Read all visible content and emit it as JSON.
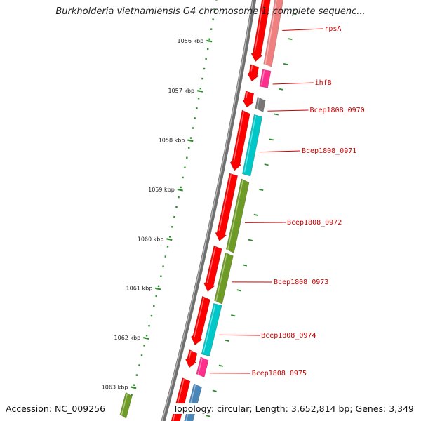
{
  "title": "Burkholderia vietnamiensis G4 chromosome 1, complete sequenc...",
  "accession": "Accession: NC_009256",
  "topology": "Topology: circular; Length: 3,652,814 bp; Genes: 3,349",
  "kbp_labels": [
    "1056 kbp",
    "1057 kbp",
    "1058 kbp",
    "1059 kbp",
    "1060 kbp",
    "1061 kbp",
    "1062 kbp",
    "1063 kbp"
  ],
  "gene_labels": [
    "rpsA",
    "ihfB",
    "Bcep1808_0970",
    "Bcep1808_0971",
    "Bcep1808_0972",
    "Bcep1808_0973",
    "Bcep1808_0974",
    "Bcep1808_0975"
  ],
  "colors": {
    "tick_green": "#2e8b2e",
    "backbone": "#8a8a8a",
    "cds_red": "#ff0000",
    "label_red": "#cc0000",
    "pink": "#ff2d8c",
    "light_red": "#f07f7f",
    "gray": "#777777",
    "cyan": "#00c8c8",
    "olive": "#6e9b25",
    "steelblue": "#4a86b8"
  }
}
